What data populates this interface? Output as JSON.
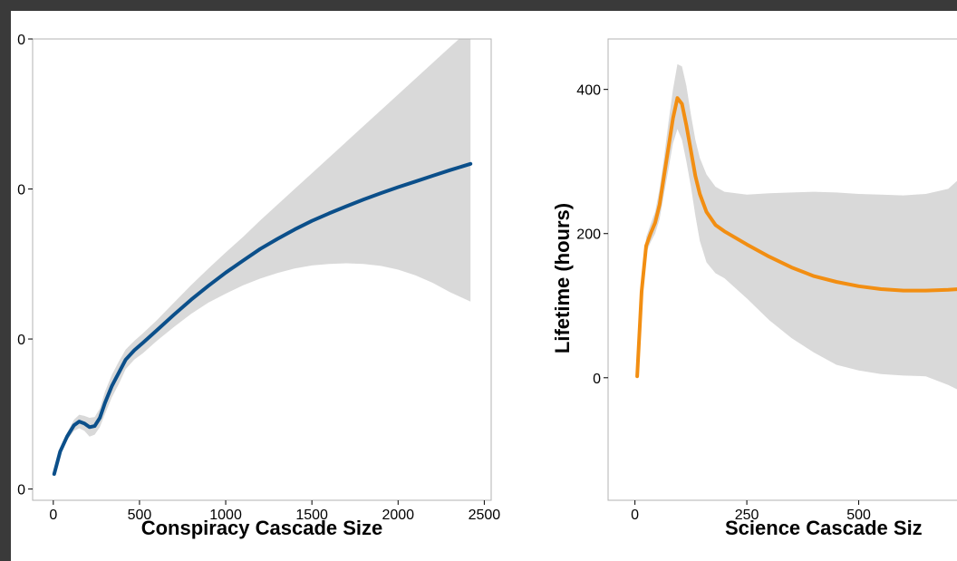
{
  "colors": {
    "page_border": "#3a3a3a",
    "background": "#ffffff",
    "band": "#d9d9d9",
    "panel_border": "#b3b3b3"
  },
  "chart_data": [
    {
      "type": "line",
      "xlabel": "Conspiracy Cascade Size",
      "ylabel": "",
      "xlim": [
        -120,
        2540
      ],
      "ylim": [
        -30,
        1200
      ],
      "x_ticks": [
        0,
        500,
        1000,
        1500,
        2000,
        2500
      ],
      "x_tick_labels": [
        "0",
        "500",
        "1000",
        "1500",
        "2000",
        "2500"
      ],
      "y_ticks": [
        0,
        400,
        800,
        1200
      ],
      "y_tick_labels": [
        "0",
        "0",
        "0",
        "0"
      ],
      "grid": false,
      "series": [
        {
          "color": "#0b4f8a",
          "x": [
            5,
            40,
            80,
            120,
            150,
            180,
            210,
            240,
            270,
            300,
            340,
            380,
            420,
            470,
            520,
            600,
            700,
            800,
            900,
            1000,
            1100,
            1200,
            1300,
            1400,
            1500,
            1600,
            1700,
            1800,
            1900,
            2000,
            2100,
            2200,
            2300,
            2420
          ],
          "y": [
            40,
            100,
            140,
            170,
            180,
            175,
            165,
            168,
            190,
            230,
            275,
            310,
            345,
            370,
            390,
            423,
            465,
            505,
            542,
            577,
            609,
            640,
            667,
            692,
            715,
            735,
            754,
            772,
            789,
            805,
            820,
            835,
            850,
            867
          ],
          "lower": [
            40,
            95,
            130,
            155,
            162,
            155,
            140,
            145,
            165,
            200,
            245,
            280,
            320,
            345,
            362,
            395,
            432,
            467,
            497,
            521,
            543,
            561,
            576,
            588,
            596,
            600,
            602,
            600,
            595,
            585,
            570,
            550,
            525,
            500
          ],
          "upper": [
            40,
            105,
            150,
            185,
            198,
            195,
            190,
            192,
            215,
            260,
            305,
            340,
            372,
            395,
            415,
            450,
            497,
            544,
            588,
            631,
            672,
            716,
            758,
            800,
            842,
            884,
            926,
            968,
            1010,
            1052,
            1094,
            1136,
            1178,
            1227
          ]
        }
      ]
    },
    {
      "type": "line",
      "xlabel": "Science Cascade Siz",
      "ylabel": "Lifetime (hours)",
      "xlim": [
        -60,
        750
      ],
      "ylim": [
        -170,
        470
      ],
      "x_ticks": [
        0,
        250,
        500
      ],
      "x_tick_labels": [
        "0",
        "250",
        "500"
      ],
      "y_ticks": [
        0,
        200,
        400
      ],
      "y_tick_labels": [
        "0",
        "200",
        "400"
      ],
      "grid": false,
      "series": [
        {
          "color": "#f28e12",
          "x": [
            5,
            15,
            25,
            35,
            45,
            55,
            65,
            75,
            85,
            95,
            105,
            115,
            125,
            135,
            145,
            160,
            180,
            200,
            250,
            300,
            350,
            400,
            450,
            500,
            550,
            600,
            650,
            700,
            750
          ],
          "y": [
            2,
            120,
            183,
            200,
            215,
            240,
            280,
            320,
            360,
            388,
            380,
            350,
            315,
            280,
            255,
            230,
            212,
            203,
            185,
            168,
            153,
            141,
            133,
            127,
            123,
            121,
            121,
            122,
            124
          ],
          "lower": [
            2,
            113,
            173,
            188,
            200,
            220,
            255,
            290,
            325,
            345,
            330,
            300,
            265,
            225,
            190,
            160,
            145,
            138,
            110,
            80,
            55,
            35,
            18,
            10,
            5,
            3,
            2,
            -10,
            -25
          ],
          "upper": [
            2,
            127,
            195,
            213,
            230,
            262,
            305,
            355,
            400,
            435,
            432,
            405,
            365,
            330,
            305,
            282,
            265,
            258,
            254,
            256,
            257,
            258,
            257,
            255,
            254,
            253,
            255,
            262,
            290
          ]
        }
      ]
    }
  ]
}
